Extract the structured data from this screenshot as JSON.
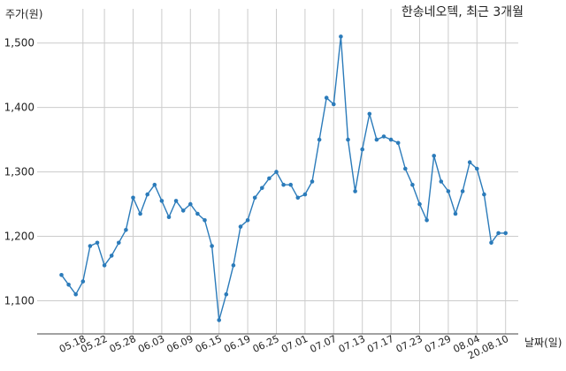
{
  "chart_data": {
    "type": "line",
    "title": "한송네오텍, 최근 3개월",
    "xlabel": "날짜(일)",
    "ylabel": "주가(원)",
    "ylim": [
      1050,
      1530
    ],
    "yticks": [
      1100,
      1200,
      1300,
      1400,
      1500
    ],
    "ytick_labels": [
      "1,100",
      "1,200",
      "1,300",
      "1,400",
      "1,500"
    ],
    "xtick_labels": [
      "05.18",
      "05.22",
      "05.28",
      "06.03",
      "06.09",
      "06.15",
      "06.19",
      "06.25",
      "07.01",
      "07.07",
      "07.13",
      "07.17",
      "07.23",
      "07.29",
      "08.04",
      "20.08.10"
    ],
    "xtick_index": [
      3,
      6,
      10,
      14,
      18,
      22,
      26,
      30,
      34,
      38,
      42,
      46,
      50,
      54,
      58,
      62
    ],
    "grid": true,
    "line_color": "#2b7bba",
    "series": [
      {
        "values": [
          1140,
          1125,
          1110,
          1130,
          1185,
          1190,
          1155,
          1170,
          1190,
          1210,
          1260,
          1235,
          1265,
          1280,
          1255,
          1230,
          1255,
          1240,
          1250,
          1235,
          1225,
          1185,
          1070,
          1110,
          1155,
          1215,
          1225,
          1260,
          1275,
          1290,
          1300,
          1280,
          1280,
          1260,
          1265,
          1285,
          1350,
          1415,
          1405,
          1510,
          1350,
          1270,
          1335,
          1390,
          1350,
          1355,
          1350,
          1345,
          1305,
          1280,
          1250,
          1225,
          1325,
          1285,
          1270,
          1235,
          1270,
          1315,
          1305,
          1265,
          1190,
          1205,
          1205
        ]
      }
    ]
  }
}
